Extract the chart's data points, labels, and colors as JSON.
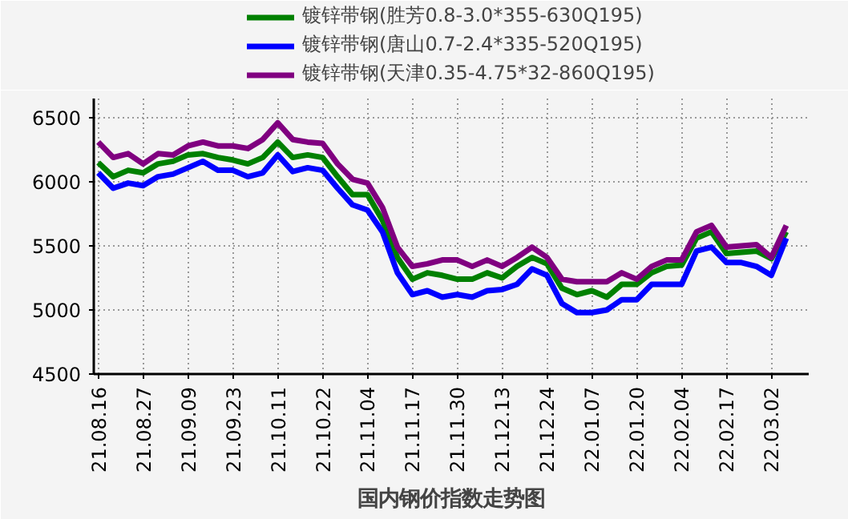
{
  "chart_data": {
    "type": "line",
    "title": "国内钢价指数走势图",
    "categories": [
      "21.08.16",
      null,
      null,
      "21.08.27",
      null,
      null,
      "21.09.09",
      null,
      null,
      "21.09.23",
      null,
      null,
      "21.10.11",
      null,
      null,
      "21.10.22",
      null,
      null,
      "21.11.04",
      null,
      null,
      "21.11.17",
      null,
      null,
      "21.11.30",
      null,
      null,
      "21.12.13",
      null,
      null,
      "21.12.24",
      null,
      null,
      "22.01.07",
      null,
      null,
      "22.01.20",
      null,
      null,
      "22.02.04",
      null,
      null,
      "22.02.17",
      null,
      null,
      "22.03.02",
      null
    ],
    "series": [
      {
        "name": "镀锌带钢(胜芳0.8-3.0*355-630Q195)",
        "color": "#008000",
        "values": [
          6150,
          6040,
          6090,
          6070,
          6140,
          6160,
          6210,
          6220,
          6190,
          6170,
          6140,
          6190,
          6310,
          6190,
          6210,
          6190,
          6040,
          5900,
          5900,
          5700,
          5410,
          5240,
          5290,
          5270,
          5240,
          5240,
          5290,
          5250,
          5340,
          5410,
          5360,
          5170,
          5120,
          5150,
          5100,
          5200,
          5200,
          5290,
          5340,
          5350,
          5560,
          5610,
          5440,
          5450,
          5460,
          5400,
          5610
        ]
      },
      {
        "name": "镀锌带钢(唐山0.7-2.4*335-520Q195)",
        "color": "#0000ff",
        "values": [
          6070,
          5950,
          5990,
          5970,
          6040,
          6060,
          6110,
          6160,
          6090,
          6090,
          6040,
          6070,
          6210,
          6080,
          6110,
          6090,
          5950,
          5820,
          5780,
          5610,
          5290,
          5120,
          5150,
          5100,
          5120,
          5100,
          5150,
          5160,
          5200,
          5320,
          5270,
          5050,
          4980,
          4980,
          5000,
          5080,
          5080,
          5200,
          5200,
          5200,
          5460,
          5490,
          5370,
          5370,
          5340,
          5270,
          5560
        ]
      },
      {
        "name": "镀锌带钢(天津0.35-4.75*32-860Q195)",
        "color": "#800080",
        "values": [
          6310,
          6190,
          6220,
          6140,
          6220,
          6210,
          6280,
          6310,
          6280,
          6280,
          6260,
          6330,
          6460,
          6330,
          6310,
          6300,
          6140,
          6020,
          5990,
          5800,
          5490,
          5340,
          5360,
          5390,
          5390,
          5340,
          5390,
          5340,
          5410,
          5490,
          5410,
          5240,
          5220,
          5220,
          5220,
          5290,
          5240,
          5340,
          5390,
          5390,
          5610,
          5660,
          5490,
          5500,
          5510,
          5410,
          5660
        ]
      }
    ],
    "ylim": [
      4500,
      6650
    ],
    "yticks": [
      4500,
      5000,
      5500,
      6000,
      6500
    ],
    "grid": true,
    "legend": "top",
    "line_style": "solid",
    "marker": "none"
  }
}
